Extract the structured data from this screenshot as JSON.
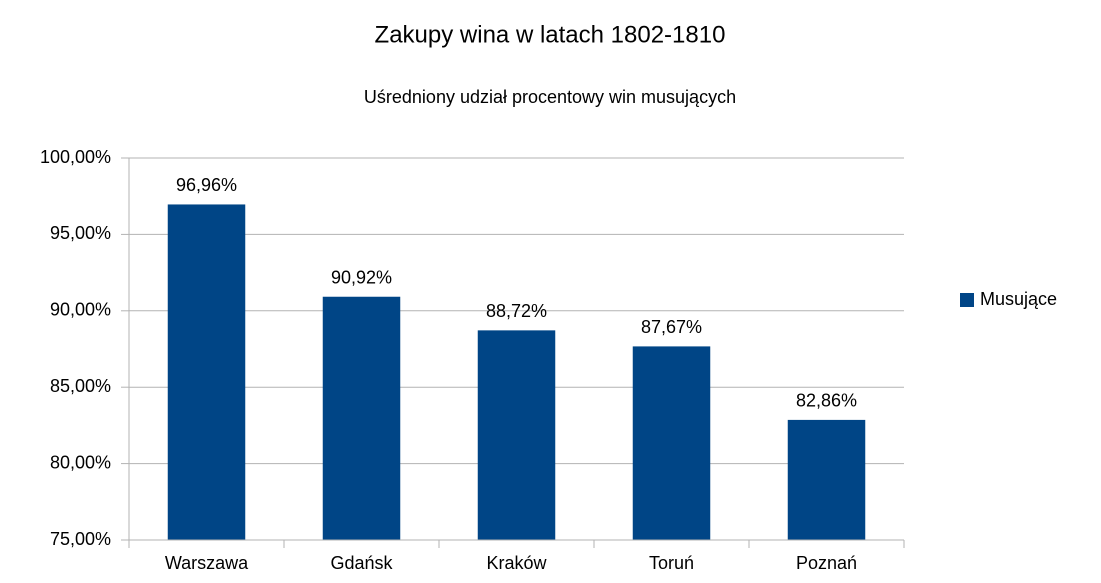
{
  "chart_data": {
    "type": "bar",
    "title": "Zakupy wina w latach 1802-1810",
    "subtitle": "Uśredniony udział procentowy win musujących",
    "categories": [
      "Warszawa",
      "Gdańsk",
      "Kraków",
      "Toruń",
      "Poznań"
    ],
    "series": [
      {
        "name": "Musujące",
        "color": "#004586",
        "values": [
          96.96,
          90.92,
          88.72,
          87.67,
          82.86
        ],
        "value_labels": [
          "96,96%",
          "90,92%",
          "88,72%",
          "87,67%",
          "82,86%"
        ]
      }
    ],
    "ylim": [
      75,
      100
    ],
    "yticks": [
      {
        "value": 75,
        "label": "75,00%"
      },
      {
        "value": 80,
        "label": "80,00%"
      },
      {
        "value": 85,
        "label": "85,00%"
      },
      {
        "value": 90,
        "label": "90,00%"
      },
      {
        "value": 95,
        "label": "95,00%"
      },
      {
        "value": 100,
        "label": "100,00%"
      }
    ],
    "grid": true,
    "legend": "right"
  }
}
